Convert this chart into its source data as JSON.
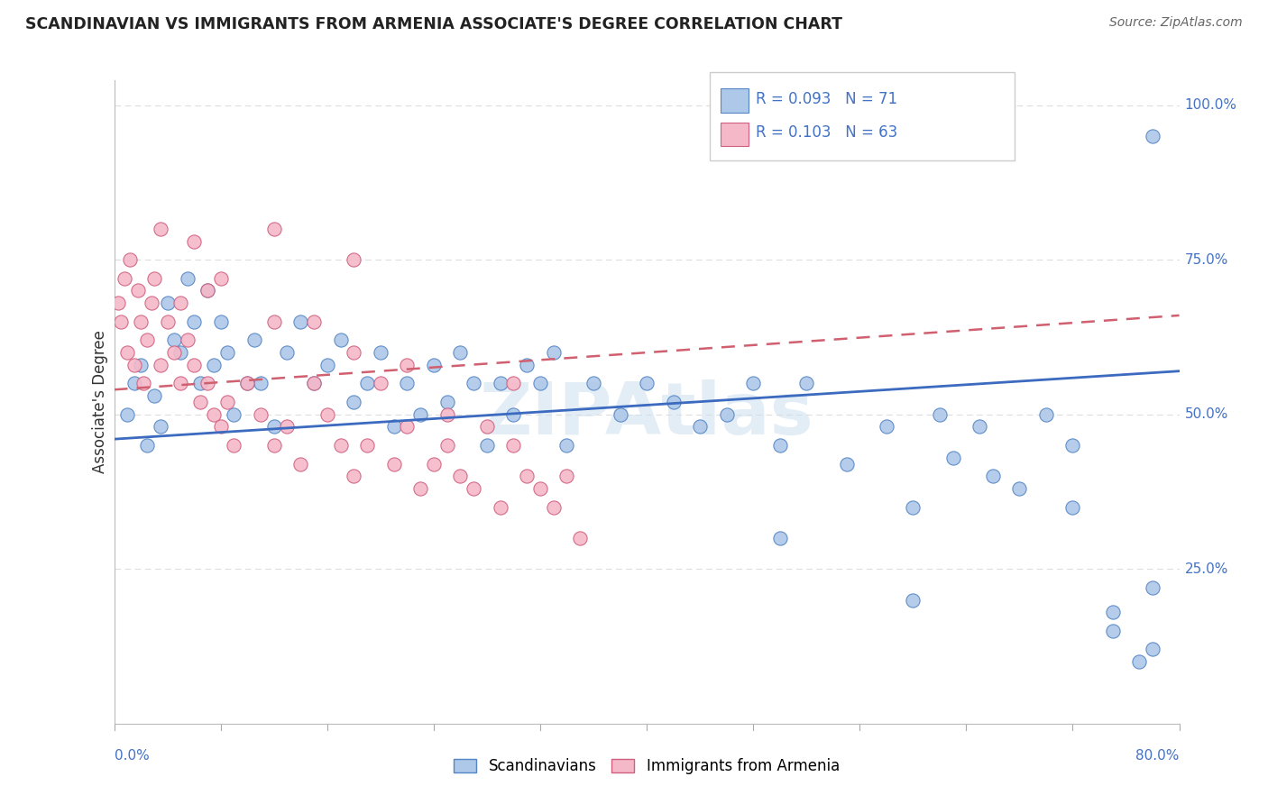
{
  "title": "SCANDINAVIAN VS IMMIGRANTS FROM ARMENIA ASSOCIATE'S DEGREE CORRELATION CHART",
  "source_text": "Source: ZipAtlas.com",
  "ylabel": "Associate's Degree",
  "right_ytick_labels": [
    "0%",
    "25.0%",
    "50.0%",
    "75.0%",
    "100.0%"
  ],
  "right_ytick_vals": [
    0,
    25,
    50,
    75,
    100
  ],
  "legend_blue_label": "R = 0.093   N = 71",
  "legend_pink_label": "R = 0.103   N = 63",
  "scatter_blue_color": "#adc8e8",
  "scatter_blue_edge": "#5585c5",
  "scatter_pink_color": "#f5b8c8",
  "scatter_pink_edge": "#d06080",
  "line_blue_color": "#3b6abf",
  "line_pink_color": "#d06070",
  "watermark": "ZIPAtlas",
  "blue_scatter_x": [
    1.0,
    1.5,
    2.0,
    2.5,
    3.0,
    3.5,
    4.0,
    4.5,
    5.0,
    5.5,
    6.0,
    6.5,
    7.0,
    7.5,
    8.0,
    8.5,
    9.0,
    10.0,
    10.5,
    11.0,
    12.0,
    13.0,
    14.0,
    15.0,
    16.0,
    17.0,
    18.0,
    19.0,
    20.0,
    21.0,
    22.0,
    23.0,
    24.0,
    25.0,
    26.0,
    27.0,
    28.0,
    29.0,
    30.0,
    31.0,
    32.0,
    33.0,
    34.0,
    36.0,
    38.0,
    40.0,
    42.0,
    44.0,
    46.0,
    48.0,
    50.0,
    52.0,
    55.0,
    58.0,
    60.0,
    62.0,
    65.0,
    68.0,
    70.0,
    72.0,
    75.0,
    77.0,
    78.0,
    50.0,
    60.0,
    75.0,
    78.0,
    63.0,
    66.0,
    72.0,
    78.0
  ],
  "blue_scatter_y": [
    50,
    55,
    58,
    45,
    53,
    48,
    68,
    62,
    60,
    72,
    65,
    55,
    70,
    58,
    65,
    60,
    50,
    55,
    62,
    55,
    48,
    60,
    65,
    55,
    58,
    62,
    52,
    55,
    60,
    48,
    55,
    50,
    58,
    52,
    60,
    55,
    45,
    55,
    50,
    58,
    55,
    60,
    45,
    55,
    50,
    55,
    52,
    48,
    50,
    55,
    45,
    55,
    42,
    48,
    35,
    50,
    48,
    38,
    50,
    45,
    15,
    10,
    95,
    30,
    20,
    18,
    12,
    43,
    40,
    35,
    22
  ],
  "pink_scatter_x": [
    0.3,
    0.5,
    0.8,
    1.0,
    1.2,
    1.5,
    1.8,
    2.0,
    2.2,
    2.5,
    2.8,
    3.0,
    3.5,
    4.0,
    4.5,
    5.0,
    5.5,
    6.0,
    6.5,
    7.0,
    7.5,
    8.0,
    8.5,
    9.0,
    10.0,
    11.0,
    12.0,
    13.0,
    14.0,
    15.0,
    16.0,
    17.0,
    18.0,
    19.0,
    20.0,
    21.0,
    22.0,
    23.0,
    24.0,
    25.0,
    26.0,
    27.0,
    28.0,
    29.0,
    30.0,
    31.0,
    32.0,
    33.0,
    34.0,
    35.0,
    6.0,
    12.0,
    18.0,
    5.0,
    8.0,
    15.0,
    22.0,
    30.0,
    3.5,
    7.0,
    12.0,
    18.0,
    25.0
  ],
  "pink_scatter_y": [
    68,
    65,
    72,
    60,
    75,
    58,
    70,
    65,
    55,
    62,
    68,
    72,
    58,
    65,
    60,
    55,
    62,
    58,
    52,
    55,
    50,
    48,
    52,
    45,
    55,
    50,
    45,
    48,
    42,
    55,
    50,
    45,
    40,
    45,
    55,
    42,
    48,
    38,
    42,
    45,
    40,
    38,
    48,
    35,
    45,
    40,
    38,
    35,
    40,
    30,
    78,
    80,
    75,
    68,
    72,
    65,
    58,
    55,
    80,
    70,
    65,
    60,
    50
  ],
  "xmin": 0,
  "xmax": 80,
  "ymin": 0,
  "ymax": 104,
  "blue_trend": [
    0,
    80,
    46,
    57
  ],
  "pink_trend": [
    0,
    80,
    54,
    66
  ],
  "grid_color": "#dddddd",
  "grid_dashes": [
    4,
    4
  ]
}
